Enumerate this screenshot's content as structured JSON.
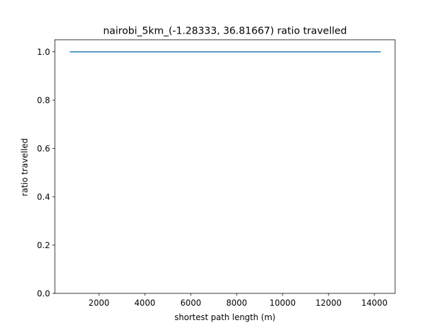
{
  "chart_data": {
    "type": "line",
    "title": "nairobi_5km_(-1.28333, 36.81667) ratio travelled",
    "xlabel": "shortest path length (m)",
    "ylabel": "ratio travelled",
    "xlim": [
      80,
      14900
    ],
    "ylim": [
      0.0,
      1.05
    ],
    "xticks": [
      2000,
      4000,
      6000,
      8000,
      10000,
      12000,
      14000
    ],
    "xtick_labels": [
      "2000",
      "4000",
      "6000",
      "8000",
      "10000",
      "12000",
      "14000"
    ],
    "yticks": [
      0.0,
      0.2,
      0.4,
      0.6,
      0.8,
      1.0
    ],
    "ytick_labels": [
      "0.0",
      "0.2",
      "0.4",
      "0.6",
      "0.8",
      "1.0"
    ],
    "grid": false,
    "series": [
      {
        "color": "#1f77b4",
        "x": [
          750,
          14250
        ],
        "y": [
          1.0,
          1.0
        ]
      }
    ]
  }
}
